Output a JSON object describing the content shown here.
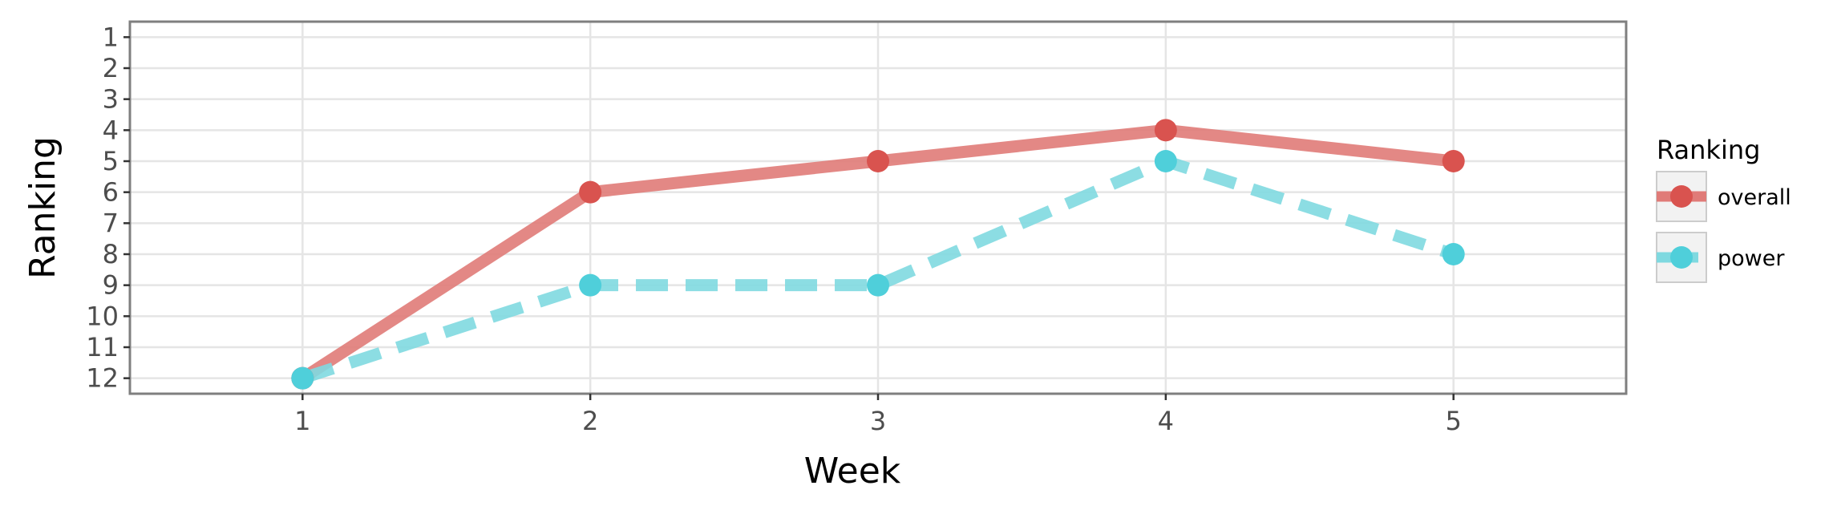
{
  "chart_data": {
    "type": "line",
    "xlabel": "Week",
    "ylabel": "Ranking",
    "x": [
      1,
      2,
      3,
      4,
      5
    ],
    "x_ticks": [
      "1",
      "2",
      "3",
      "4",
      "5"
    ],
    "xlim": [
      0.4,
      5.6
    ],
    "y_ticks": [
      "1",
      "2",
      "3",
      "4",
      "5",
      "6",
      "7",
      "8",
      "9",
      "10",
      "11",
      "12"
    ],
    "ylim": [
      12.5,
      0.5
    ],
    "y_reversed": true,
    "grid": true,
    "legend": {
      "title": "Ranking",
      "position": "right",
      "entries": [
        "overall",
        "power"
      ]
    },
    "series": [
      {
        "name": "overall",
        "values": [
          12,
          6,
          5,
          4,
          5
        ],
        "color": "#E07B78",
        "point_color": "#D9534F",
        "linestyle": "solid"
      },
      {
        "name": "power",
        "values": [
          12,
          9,
          9,
          5,
          8
        ],
        "color": "#7FD9E0",
        "point_color": "#4FCFDA",
        "linestyle": "dashed"
      }
    ]
  }
}
